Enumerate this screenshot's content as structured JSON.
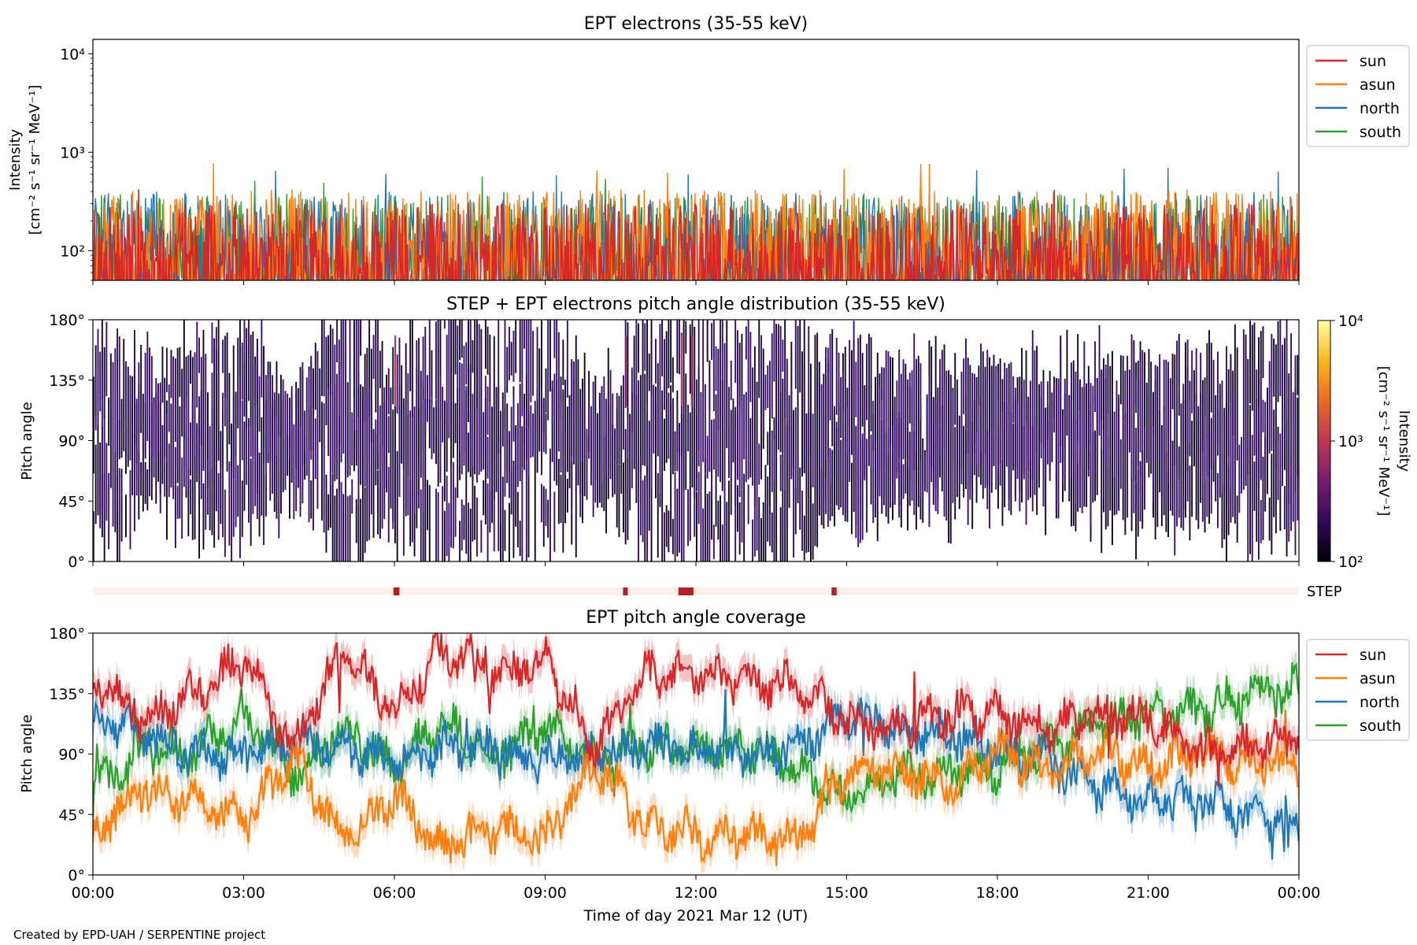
{
  "credit": "Created by EPD-UAH / SERPENTINE project",
  "colors": {
    "sun": "#d62728",
    "asun": "#ff7f0e",
    "north": "#1f77b4",
    "south": "#2ca02c",
    "step_bar_bg": "#fdf0ec",
    "step_bar_mark": "#b22222"
  },
  "chart_data": [
    {
      "id": "intensity",
      "type": "line",
      "title": "EPT electrons (35-55 keV)",
      "ylabel": "Intensity",
      "ylabel_units": "[cm⁻² s⁻¹ sr⁻¹ MeV⁻¹]",
      "yscale": "log",
      "ylim": [
        50,
        14000
      ],
      "yticks": [
        {
          "value": 100,
          "label": "10²"
        },
        {
          "value": 1000,
          "label": "10³"
        },
        {
          "value": 10000,
          "label": "10⁴"
        }
      ],
      "xlim": [
        0,
        24
      ],
      "legend": {
        "placement": "outside-right",
        "entries": [
          "sun",
          "asun",
          "north",
          "south"
        ]
      },
      "series": [
        {
          "name": "sun",
          "typical_range": [
            50,
            300
          ],
          "peak": 460
        },
        {
          "name": "asun",
          "typical_range": [
            60,
            420
          ],
          "peak": 770
        },
        {
          "name": "north",
          "typical_range": [
            50,
            400
          ],
          "peak": 720
        },
        {
          "name": "south",
          "typical_range": [
            50,
            380
          ],
          "peak": 600
        }
      ]
    },
    {
      "id": "pad",
      "type": "heatmap",
      "title": "STEP + EPT electrons pitch angle distribution (35-55 keV)",
      "ylabel": "Pitch angle",
      "ylim": [
        0,
        180
      ],
      "yticks": [
        {
          "value": 0,
          "label": "0°"
        },
        {
          "value": 45,
          "label": "45°"
        },
        {
          "value": 90,
          "label": "90°"
        },
        {
          "value": 135,
          "label": "135°"
        },
        {
          "value": 180,
          "label": "180°"
        }
      ],
      "xlim": [
        0,
        24
      ],
      "colorbar": {
        "label": "Intensity",
        "units": "[cm⁻² s⁻¹ sr⁻¹ MeV⁻¹]",
        "scale": "log",
        "range": [
          100,
          10000
        ],
        "ticks": [
          {
            "value": 100,
            "label": "10²"
          },
          {
            "value": 1000,
            "label": "10³"
          },
          {
            "value": 10000,
            "label": "10⁴"
          }
        ],
        "colormap": [
          "#000004",
          "#320a5e",
          "#781c6d",
          "#bc3754",
          "#ed6925",
          "#fbb61a",
          "#fcffa4"
        ]
      }
    },
    {
      "id": "step",
      "type": "bar",
      "label": "STEP",
      "xlim": [
        0,
        24
      ],
      "active_intervals": [
        [
          5.98,
          6.1
        ],
        [
          10.55,
          10.64
        ],
        [
          11.65,
          11.95
        ],
        [
          14.7,
          14.8
        ]
      ]
    },
    {
      "id": "coverage",
      "type": "line",
      "title": "EPT pitch angle coverage",
      "ylabel": "Pitch angle",
      "xlabel": "Time of day 2021 Mar 12 (UT)",
      "ylim": [
        0,
        180
      ],
      "yticks": [
        {
          "value": 0,
          "label": "0°"
        },
        {
          "value": 45,
          "label": "45°"
        },
        {
          "value": 90,
          "label": "90°"
        },
        {
          "value": 135,
          "label": "135°"
        },
        {
          "value": 180,
          "label": "180°"
        }
      ],
      "xlim": [
        0,
        24
      ],
      "xticks": [
        {
          "value": 0,
          "label": "00:00"
        },
        {
          "value": 3,
          "label": "03:00"
        },
        {
          "value": 6,
          "label": "06:00"
        },
        {
          "value": 9,
          "label": "09:00"
        },
        {
          "value": 12,
          "label": "12:00"
        },
        {
          "value": 15,
          "label": "15:00"
        },
        {
          "value": 18,
          "label": "18:00"
        },
        {
          "value": 21,
          "label": "21:00"
        },
        {
          "value": 24,
          "label": "00:00"
        }
      ],
      "legend": {
        "placement": "outside-right",
        "entries": [
          "sun",
          "asun",
          "north",
          "south"
        ]
      },
      "band_halfwidth_deg": 10,
      "series": [
        {
          "name": "sun",
          "x": [
            0,
            1,
            2,
            3,
            4,
            5,
            6,
            7,
            8,
            9,
            10,
            11,
            12,
            13,
            14,
            15,
            16,
            17,
            18,
            19,
            20,
            21,
            22,
            23,
            24
          ],
          "y": [
            150,
            115,
            135,
            160,
            95,
            170,
            120,
            170,
            150,
            160,
            95,
            150,
            150,
            145,
            140,
            115,
            110,
            120,
            120,
            110,
            120,
            120,
            90,
            95,
            100
          ]
        },
        {
          "name": "asun",
          "x": [
            0,
            1,
            2,
            3,
            4,
            5,
            6,
            7,
            8,
            9,
            10,
            11,
            12,
            13,
            14,
            15,
            16,
            17,
            18,
            19,
            20,
            21,
            22,
            23,
            24
          ],
          "y": [
            30,
            65,
            55,
            40,
            85,
            25,
            60,
            20,
            35,
            25,
            85,
            35,
            30,
            30,
            25,
            75,
            80,
            65,
            95,
            75,
            90,
            80,
            90,
            85,
            80
          ]
        },
        {
          "name": "north",
          "x": [
            0,
            1,
            2,
            3,
            4,
            5,
            6,
            7,
            8,
            9,
            10,
            11,
            12,
            13,
            14,
            15,
            16,
            17,
            18,
            19,
            20,
            21,
            22,
            23,
            24
          ],
          "y": [
            120,
            105,
            90,
            90,
            100,
            95,
            85,
            95,
            95,
            85,
            90,
            95,
            95,
            90,
            95,
            120,
            110,
            105,
            95,
            85,
            65,
            55,
            55,
            45,
            40
          ]
        },
        {
          "name": "south",
          "x": [
            0,
            1,
            2,
            3,
            4,
            5,
            6,
            7,
            8,
            9,
            10,
            11,
            12,
            13,
            14,
            15,
            16,
            17,
            18,
            19,
            20,
            21,
            22,
            23,
            24
          ],
          "y": [
            65,
            95,
            90,
            120,
            75,
            110,
            80,
            115,
            85,
            110,
            85,
            95,
            95,
            95,
            80,
            55,
            75,
            75,
            80,
            95,
            110,
            120,
            120,
            135,
            140
          ]
        }
      ]
    }
  ]
}
